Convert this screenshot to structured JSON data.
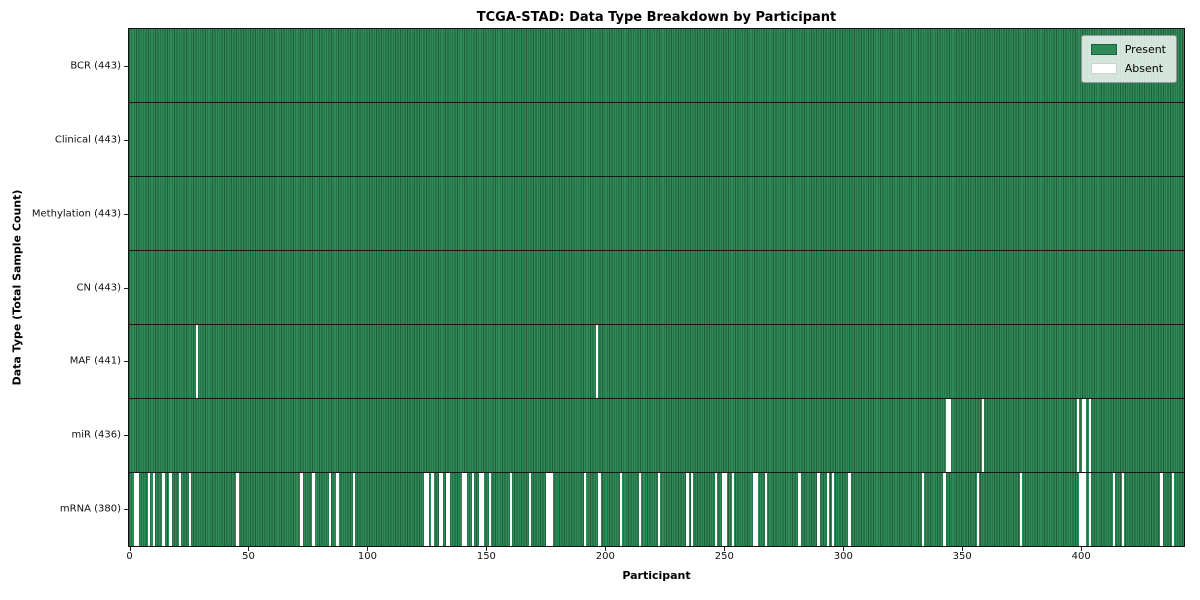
{
  "chart_data": {
    "type": "heatmap",
    "title": "TCGA-STAD: Data Type Breakdown by Participant",
    "xlabel": "Participant",
    "ylabel": "Data Type (Total Sample Count)",
    "n_participants": 443,
    "x_ticks": [
      0,
      50,
      100,
      150,
      200,
      250,
      300,
      350,
      400
    ],
    "xlim": [
      0,
      443
    ],
    "grid": false,
    "legend_position": "upper right",
    "colors": {
      "present": "#2e8b57",
      "absent": "#ffffff",
      "cell_edge": "#225e3d",
      "row_divider": "#161616",
      "frame": "#101010"
    },
    "rows": [
      {
        "label": "BCR (443)",
        "present_count": 443,
        "absent_participants": []
      },
      {
        "label": "Clinical (443)",
        "present_count": 443,
        "absent_participants": []
      },
      {
        "label": "Methylation (443)",
        "present_count": 443,
        "absent_participants": []
      },
      {
        "label": "CN (443)",
        "present_count": 443,
        "absent_participants": []
      },
      {
        "label": "MAF (441)",
        "present_count": 441,
        "absent_participants": [
          28,
          196
        ]
      },
      {
        "label": "miR (436)",
        "present_count": 436,
        "absent_participants": [
          343,
          344,
          358,
          398,
          400,
          401,
          403
        ]
      },
      {
        "label": "mRNA (380)",
        "present_count": 380,
        "absent_participants": [
          2,
          3,
          8,
          10,
          14,
          17,
          21,
          25,
          45,
          72,
          77,
          84,
          87,
          94,
          124,
          125,
          127,
          130,
          131,
          133,
          134,
          140,
          141,
          144,
          147,
          148,
          151,
          160,
          168,
          175,
          176,
          177,
          191,
          197,
          206,
          214,
          222,
          234,
          236,
          246,
          249,
          250,
          253,
          262,
          263,
          267,
          281,
          289,
          293,
          295,
          302,
          333,
          342,
          356,
          374,
          399,
          400,
          401,
          403,
          413,
          417,
          433,
          438
        ]
      }
    ],
    "legend": [
      {
        "label": "Present",
        "color": "#2e8b57",
        "edge": "#20613d"
      },
      {
        "label": "Absent",
        "color": "#ffffff",
        "edge": "#d0d0d0"
      }
    ]
  }
}
